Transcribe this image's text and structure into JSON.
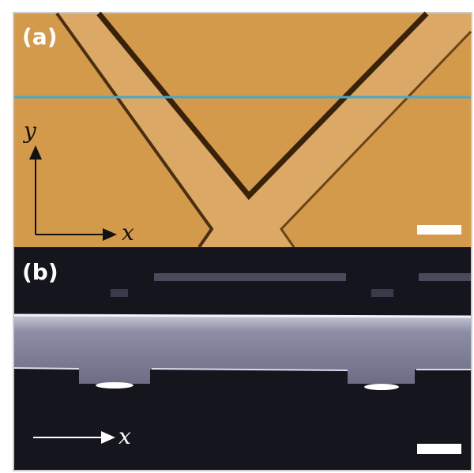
{
  "panels": [
    {
      "label": "(a)",
      "axis_labels": [
        "y",
        "x"
      ]
    },
    {
      "label": "(b)",
      "axis_labels": [
        "x"
      ]
    }
  ]
}
